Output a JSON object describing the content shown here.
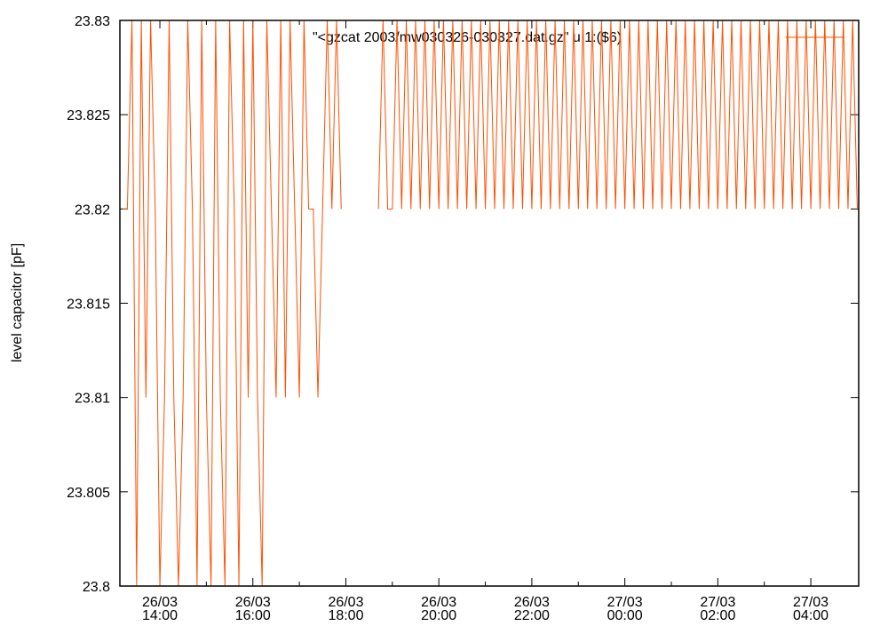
{
  "chart_data": {
    "type": "line",
    "ylabel": "level capacitor [pF]",
    "xlim": [
      13.14,
      29.03
    ],
    "xticks": [
      {
        "value": 14,
        "label": "26/03\n14:00"
      },
      {
        "value": 16,
        "label": "26/03\n16:00"
      },
      {
        "value": 18,
        "label": "26/03\n18:00"
      },
      {
        "value": 20,
        "label": "26/03\n20:00"
      },
      {
        "value": 22,
        "label": "26/03\n22:00"
      },
      {
        "value": 24,
        "label": "27/03\n00:00"
      },
      {
        "value": 26,
        "label": "27/03\n02:00"
      },
      {
        "value": 28,
        "label": "27/03\n04:00"
      }
    ],
    "xminorticks": [
      15,
      17,
      19,
      21,
      23,
      25,
      27
    ],
    "ylim": [
      23.8,
      23.83
    ],
    "yticks": [
      23.8,
      23.805,
      23.81,
      23.815,
      23.82,
      23.825,
      23.83
    ],
    "legend": "top-right",
    "x": [
      13.2,
      13.3,
      13.4,
      13.5,
      13.6,
      13.7,
      13.8,
      13.9,
      14.0,
      14.1,
      14.2,
      14.3,
      14.4,
      14.5,
      14.6,
      14.7,
      14.8,
      14.9,
      15.0,
      15.1,
      15.2,
      15.3,
      15.4,
      15.5,
      15.6,
      15.7,
      15.8,
      15.9,
      16.0,
      16.1,
      16.2,
      16.3,
      16.4,
      16.5,
      16.6,
      16.7,
      16.8,
      16.9,
      17.0,
      17.1,
      17.2,
      17.3,
      17.4,
      17.5,
      17.6,
      17.7,
      17.8,
      17.9,
      18.0,
      18.1,
      18.2,
      18.3,
      18.4,
      18.5,
      18.6,
      18.7,
      18.8,
      18.9,
      19.0,
      19.1,
      19.2,
      19.3,
      19.4,
      19.5,
      19.6,
      19.7,
      19.8,
      19.9,
      20.0,
      20.1,
      20.2,
      20.3,
      20.4,
      20.5,
      20.6,
      20.7,
      20.8,
      20.9,
      21.0,
      21.1,
      21.2,
      21.3,
      21.4,
      21.5,
      21.6,
      21.7,
      21.8,
      21.9,
      22.0,
      22.1,
      22.2,
      22.3,
      22.4,
      22.5,
      22.6,
      22.7,
      22.8,
      22.9,
      23.0,
      23.1,
      23.2,
      23.3,
      23.4,
      23.5,
      23.6,
      23.7,
      23.8,
      23.9,
      24.0,
      24.1,
      24.2,
      24.3,
      24.4,
      24.5,
      24.6,
      24.7,
      24.8,
      24.9,
      25.0,
      25.1,
      25.2,
      25.3,
      25.4,
      25.5,
      25.6,
      25.7,
      25.8,
      25.9,
      26.0,
      26.1,
      26.2,
      26.3,
      26.4,
      26.5,
      26.6,
      26.7,
      26.8,
      26.9,
      27.0,
      27.1,
      27.2,
      27.3,
      27.4,
      27.5,
      27.6,
      27.7,
      27.8,
      27.9,
      28.0,
      28.1,
      28.2,
      28.3,
      28.4,
      28.5,
      28.6,
      28.7,
      28.8,
      28.9,
      29.0
    ],
    "series": [
      {
        "name": "\"<gzcat 2003/mw030326-030327.dat.gz\" u 1:($6)",
        "color": "#ff4f00",
        "values": [
          23.82,
          23.82,
          23.83,
          23.8,
          23.83,
          23.81,
          23.83,
          23.82,
          23.8,
          23.81,
          23.83,
          23.81,
          23.8,
          23.81,
          23.83,
          23.82,
          23.8,
          23.83,
          23.81,
          23.8,
          23.83,
          23.81,
          23.8,
          23.83,
          23.82,
          23.8,
          23.83,
          23.81,
          23.83,
          23.81,
          23.8,
          23.83,
          23.82,
          23.81,
          23.83,
          23.81,
          23.83,
          23.82,
          23.81,
          23.83,
          23.82,
          23.82,
          23.81,
          23.82,
          23.83,
          23.82,
          23.83,
          23.82,
          null,
          null,
          null,
          null,
          null,
          null,
          null,
          23.82,
          23.83,
          23.82,
          23.82,
          23.83,
          23.82,
          23.83,
          23.82,
          23.83,
          23.82,
          23.83,
          23.82,
          23.83,
          23.82,
          23.83,
          23.82,
          23.83,
          23.82,
          23.83,
          23.82,
          23.83,
          23.82,
          23.83,
          23.82,
          23.83,
          23.82,
          23.83,
          23.82,
          23.83,
          23.82,
          23.83,
          23.82,
          23.83,
          23.82,
          23.83,
          23.82,
          23.83,
          23.82,
          23.83,
          23.82,
          23.83,
          23.82,
          23.83,
          23.82,
          23.83,
          23.82,
          23.83,
          23.82,
          23.83,
          23.82,
          23.83,
          23.82,
          23.83,
          23.82,
          23.83,
          23.82,
          23.83,
          23.82,
          23.83,
          23.82,
          23.83,
          23.82,
          23.83,
          23.82,
          23.83,
          23.82,
          23.83,
          23.82,
          23.83,
          23.82,
          23.83,
          23.82,
          23.83,
          23.82,
          23.83,
          23.82,
          23.83,
          23.82,
          23.83,
          23.82,
          23.83,
          23.82,
          23.83,
          23.82,
          23.83,
          23.82,
          23.83,
          23.82,
          23.83,
          23.82,
          23.83,
          23.82,
          23.83,
          23.82,
          23.83,
          23.82,
          23.83,
          23.82,
          23.83,
          23.82,
          23.83,
          23.82,
          23.83,
          23.82
        ]
      }
    ]
  }
}
